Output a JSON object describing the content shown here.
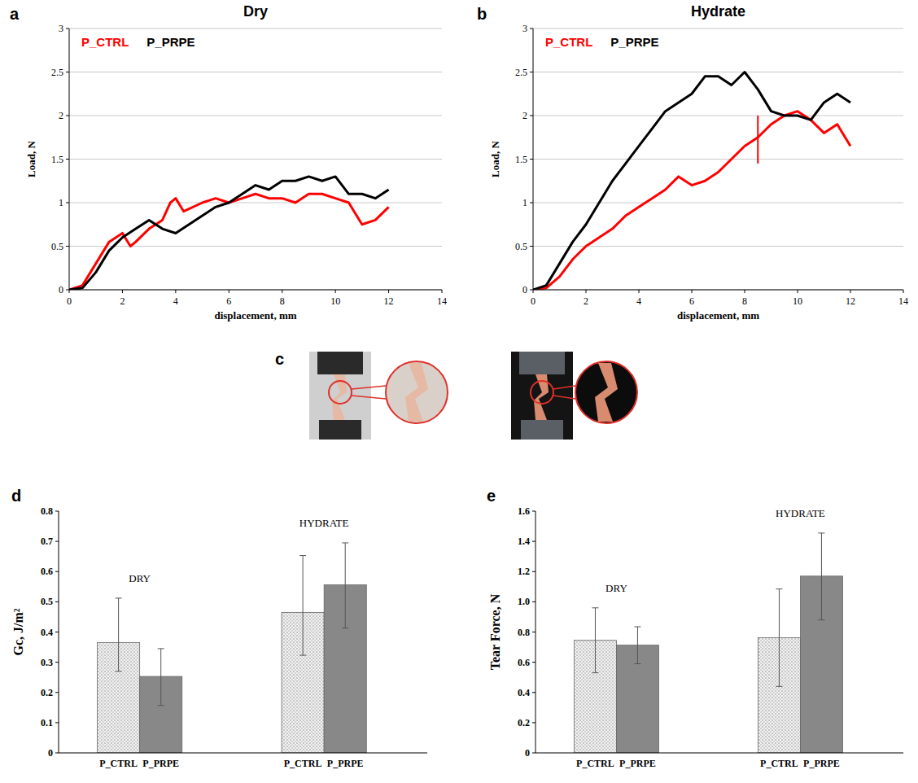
{
  "chart_data": [
    {
      "panel": "a",
      "type": "line",
      "title": "Dry",
      "x_label": "displacement, mm",
      "y_label": "Load, N",
      "xlim": [
        0,
        14
      ],
      "xticks": [
        0,
        2,
        4,
        6,
        8,
        10,
        12,
        14
      ],
      "ylim": [
        0,
        3
      ],
      "yticks": [
        0,
        0.5,
        1,
        1.5,
        2,
        2.5,
        3
      ],
      "grid": true,
      "legend": "upper left",
      "series": [
        {
          "name": "P_CTRL",
          "color": "#ff0000",
          "x": [
            0,
            0.5,
            1,
            1.5,
            2,
            2.3,
            2.5,
            3,
            3.5,
            3.8,
            4,
            4.3,
            5,
            5.5,
            6,
            6.5,
            7,
            7.5,
            8,
            8.5,
            9,
            9.5,
            10,
            10.5,
            11,
            11.5,
            12
          ],
          "values": [
            0,
            0.05,
            0.3,
            0.55,
            0.65,
            0.5,
            0.55,
            0.7,
            0.8,
            1.0,
            1.05,
            0.9,
            1.0,
            1.05,
            1.0,
            1.05,
            1.1,
            1.05,
            1.05,
            1.0,
            1.1,
            1.1,
            1.05,
            1.0,
            0.75,
            0.8,
            0.95
          ]
        },
        {
          "name": "P_PRPE",
          "color": "#000000",
          "x": [
            0,
            0.5,
            1,
            1.5,
            2,
            2.5,
            3,
            3.5,
            4,
            4.5,
            5,
            5.5,
            6,
            6.5,
            7,
            7.5,
            8,
            8.5,
            9,
            9.5,
            10,
            10.5,
            11,
            11.5,
            12
          ],
          "values": [
            0,
            0.02,
            0.2,
            0.45,
            0.6,
            0.7,
            0.8,
            0.7,
            0.65,
            0.75,
            0.85,
            0.95,
            1.0,
            1.1,
            1.2,
            1.15,
            1.25,
            1.25,
            1.3,
            1.25,
            1.3,
            1.1,
            1.1,
            1.05,
            1.15
          ]
        }
      ]
    },
    {
      "panel": "b",
      "type": "line",
      "title": "Hydrate",
      "x_label": "displacement, mm",
      "y_label": "Load, N",
      "xlim": [
        0,
        14
      ],
      "xticks": [
        0,
        2,
        4,
        6,
        8,
        10,
        12,
        14
      ],
      "ylim": [
        0,
        3
      ],
      "yticks": [
        0,
        0.5,
        1,
        1.5,
        2,
        2.5,
        3
      ],
      "grid": true,
      "legend": "upper left",
      "break_mark": {
        "x": 8.5,
        "ylim": [
          1.45,
          2.0
        ]
      },
      "series": [
        {
          "name": "P_CTRL",
          "color": "#ff0000",
          "x": [
            0,
            0.5,
            1,
            1.5,
            2,
            2.5,
            3,
            3.5,
            4,
            4.5,
            5,
            5.5,
            6,
            6.5,
            7,
            7.5,
            8,
            8.5,
            9,
            9.5,
            10,
            10.5,
            11,
            11.5,
            12
          ],
          "values": [
            0,
            0.02,
            0.15,
            0.35,
            0.5,
            0.6,
            0.7,
            0.85,
            0.95,
            1.05,
            1.15,
            1.3,
            1.2,
            1.25,
            1.35,
            1.5,
            1.65,
            1.75,
            1.9,
            2.0,
            2.05,
            1.95,
            1.8,
            1.9,
            1.65
          ]
        },
        {
          "name": "P_PRPE",
          "color": "#000000",
          "x": [
            0,
            0.5,
            1,
            1.5,
            2,
            2.5,
            3,
            3.5,
            4,
            4.5,
            5,
            5.5,
            6,
            6.5,
            7,
            7.5,
            8,
            8.5,
            9,
            9.5,
            10,
            10.5,
            11,
            11.5,
            12
          ],
          "values": [
            0,
            0.05,
            0.3,
            0.55,
            0.75,
            1.0,
            1.25,
            1.45,
            1.65,
            1.85,
            2.05,
            2.15,
            2.25,
            2.45,
            2.45,
            2.35,
            2.5,
            2.3,
            2.05,
            2.0,
            2.0,
            1.95,
            2.15,
            2.25,
            2.15
          ]
        }
      ]
    },
    {
      "panel": "d",
      "type": "bar",
      "y_label": "Gc, J/m²",
      "categories": [
        "DRY",
        "HYDRATE"
      ],
      "ylim": [
        0,
        0.8
      ],
      "yticks": [
        0,
        0.1,
        0.2,
        0.3,
        0.4,
        0.5,
        0.6,
        0.7,
        0.8
      ],
      "grid": false,
      "series": [
        {
          "name": "P_CTRL",
          "color": "#f2f2f2",
          "values": [
            0.365,
            0.465
          ],
          "error_minus": [
            0.095,
            0.142
          ],
          "error_plus": [
            0.147,
            0.188
          ]
        },
        {
          "name": "P_PRPE",
          "color": "#888888",
          "values": [
            0.253,
            0.556
          ],
          "error_minus": [
            0.096,
            0.143
          ],
          "error_plus": [
            0.092,
            0.139
          ]
        }
      ]
    },
    {
      "panel": "e",
      "type": "bar",
      "y_label": "Tear Force, N",
      "categories": [
        "DRY",
        "HYDRATE"
      ],
      "ylim": [
        0,
        1.6
      ],
      "yticks": [
        0,
        0.2,
        0.4,
        0.6,
        0.8,
        {
          "value": 1,
          "label": "1.0"
        },
        1.2,
        1.4,
        1.6
      ],
      "grid": false,
      "series": [
        {
          "name": "P_CTRL",
          "color": "#f2f2f2",
          "values": [
            0.745,
            0.762
          ],
          "error_minus": [
            0.215,
            0.322
          ],
          "error_plus": [
            0.215,
            0.323
          ]
        },
        {
          "name": "P_PRPE",
          "color": "#888888",
          "values": [
            0.713,
            1.17
          ],
          "error_minus": [
            0.123,
            0.29
          ],
          "error_plus": [
            0.122,
            0.285
          ]
        }
      ]
    }
  ],
  "photos": {
    "panel": "c"
  }
}
